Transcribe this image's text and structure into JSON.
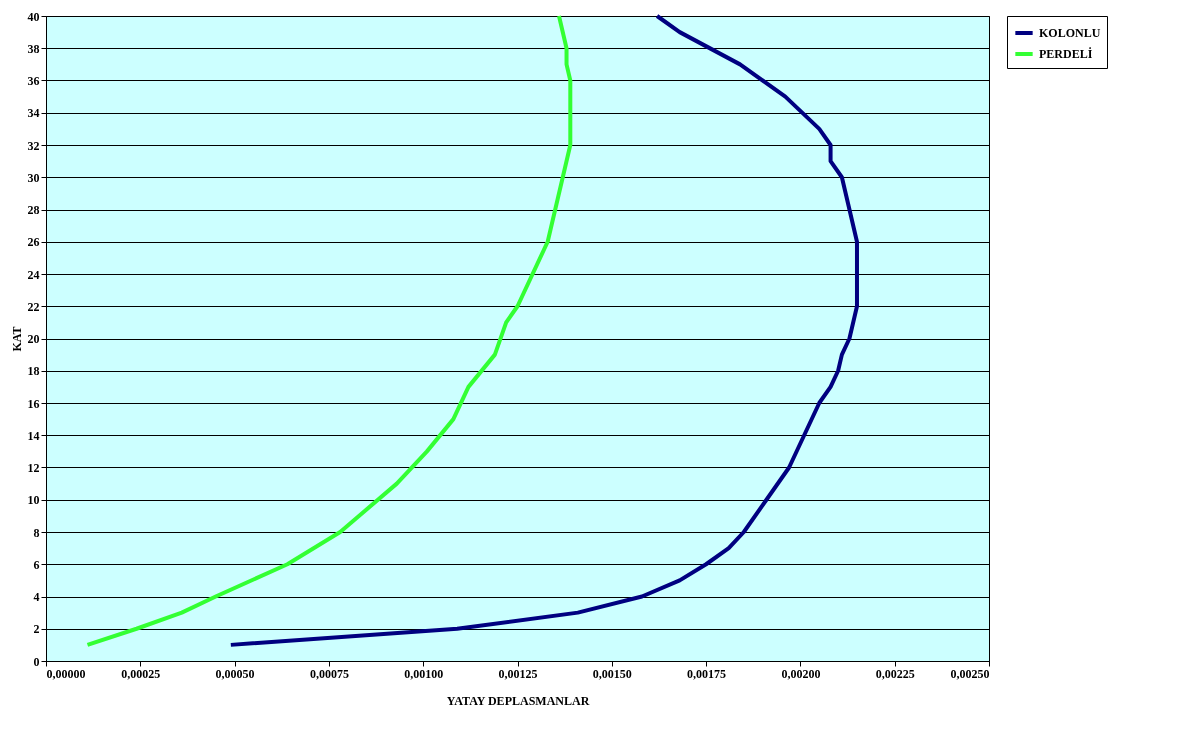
{
  "chart_data": {
    "type": "line",
    "xlabel": "YATAY DEPLASMANLAR",
    "ylabel": "KAT",
    "series": [
      {
        "name": "KOLONLU",
        "color": "#000080",
        "x": [
          0.00049,
          0.00109,
          0.00141,
          0.00158,
          0.00168,
          0.00175,
          0.00181,
          0.00185,
          0.00191,
          0.00197,
          0.00201,
          0.00205,
          0.00208,
          0.0021,
          0.00211,
          0.00213,
          0.00215,
          0.00215,
          0.00215,
          0.00213,
          0.00211,
          0.00208,
          0.00208,
          0.00205,
          0.00196,
          0.00184,
          0.00168,
          0.00162
        ],
        "values": [
          1,
          2,
          3,
          4,
          5,
          6,
          7,
          8,
          10,
          12,
          14,
          16,
          17,
          18,
          19,
          20,
          22,
          24,
          26,
          28,
          30,
          31,
          32,
          33,
          35,
          37,
          39,
          40
        ]
      },
      {
        "name": "PERDELİ",
        "color": "#33ff33",
        "x": [
          0.00011,
          0.00024,
          0.00036,
          0.00045,
          0.00064,
          0.00078,
          0.00093,
          0.00101,
          0.00108,
          0.00112,
          0.00119,
          0.00122,
          0.00125,
          0.00133,
          0.00139,
          0.00139,
          0.00138,
          0.00138,
          0.00136
        ],
        "values": [
          1,
          2,
          3,
          4,
          6,
          8,
          11,
          13,
          15,
          17,
          19,
          21,
          22,
          26,
          32,
          36,
          37,
          38,
          40
        ]
      }
    ],
    "xlim": [
      0,
      0.0025
    ],
    "xticks": [
      {
        "value": 0,
        "label": "0,00000"
      },
      {
        "value": 0.00025,
        "label": "0,00025"
      },
      {
        "value": 0.0005,
        "label": "0,00050"
      },
      {
        "value": 0.00075,
        "label": "0,00075"
      },
      {
        "value": 0.001,
        "label": "0,00100"
      },
      {
        "value": 0.00125,
        "label": "0,00125"
      },
      {
        "value": 0.0015,
        "label": "0,00150"
      },
      {
        "value": 0.00175,
        "label": "0,00175"
      },
      {
        "value": 0.002,
        "label": "0,00200"
      },
      {
        "value": 0.00225,
        "label": "0,00225"
      },
      {
        "value": 0.0025,
        "label": "0,00250"
      }
    ],
    "ylim": [
      0,
      40
    ],
    "yticks": [
      0,
      2,
      4,
      6,
      8,
      10,
      12,
      14,
      16,
      18,
      20,
      22,
      24,
      26,
      28,
      30,
      32,
      34,
      36,
      38,
      40
    ],
    "grid": "y",
    "legend": "right",
    "marker": "none",
    "line_style": "solid"
  }
}
